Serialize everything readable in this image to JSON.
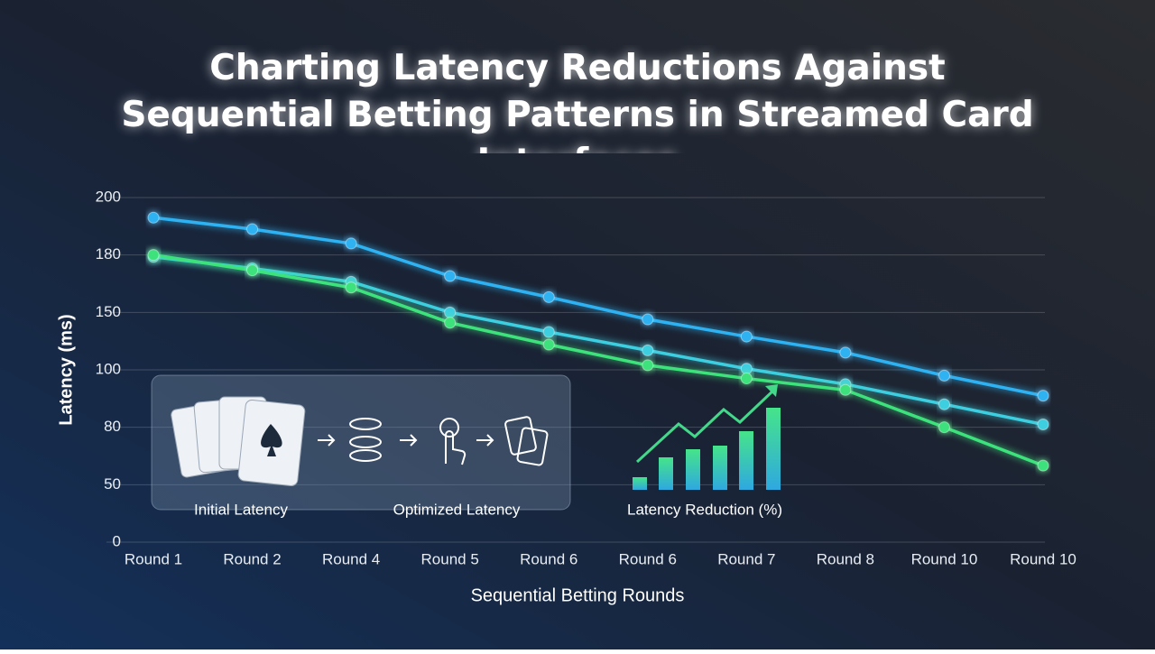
{
  "chart_data": {
    "type": "line",
    "title": "Charting Latency Reductions Against Sequential Betting Patterns in Streamed Card Interfaces",
    "x_label": "Sequential Betting Rounds",
    "y_label": "Latency (ms)",
    "categories": [
      "Round 1",
      "Round 2",
      "Round 4",
      "Round 5",
      "Round 6",
      "Round 6",
      "Round 7",
      "Round 8",
      "Round 10",
      "Round 10"
    ],
    "series": [
      {
        "color": "#2fb2f2",
        "values": [
          193,
          189,
          184,
          169,
          158,
          144,
          129,
          115,
          98,
          91
        ]
      },
      {
        "color": "#3ccfe0",
        "values": [
          179,
          173,
          166,
          150,
          133,
          117,
          101,
          95,
          88,
          81
        ]
      },
      {
        "color": "#3ee27c",
        "values": [
          180,
          172,
          163,
          141,
          122,
          104,
          97,
          93,
          80,
          60
        ]
      }
    ],
    "ylim": [
      0,
      200
    ],
    "yticks": [
      0,
      50,
      80,
      100,
      150,
      180,
      200
    ],
    "grid": true,
    "annotations": [
      "Initial Latency",
      "Optimized Latency",
      "Latency Reduction (%)"
    ]
  }
}
